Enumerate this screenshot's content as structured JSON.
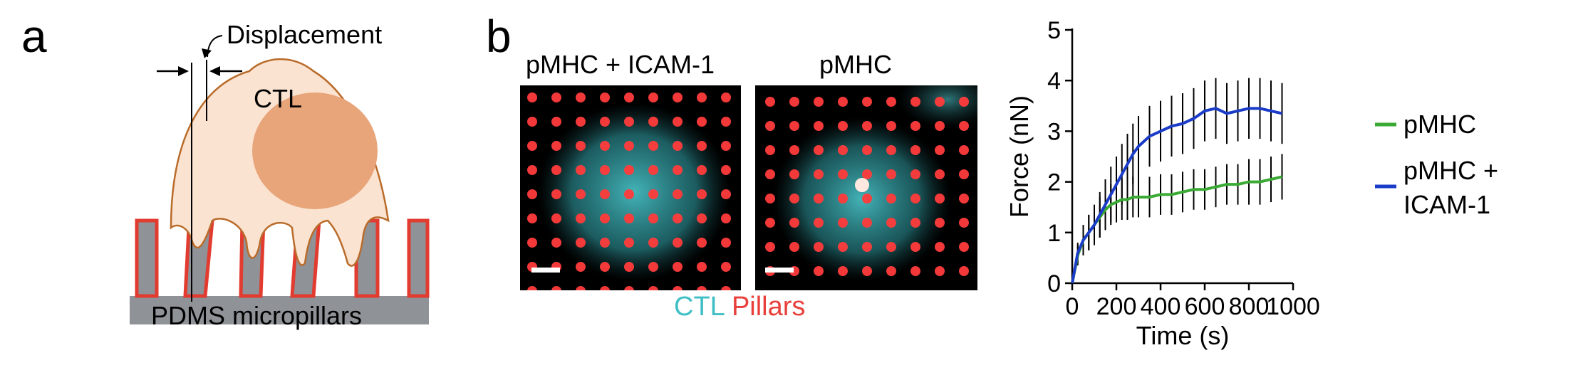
{
  "panel_a": {
    "letter": "a",
    "displacement_label": "Displacement",
    "cell_label": "CTL",
    "substrate_label": "PDMS micropillars"
  },
  "panel_b": {
    "letter": "b",
    "image_titles": [
      "pMHC + ICAM-1",
      "pMHC"
    ],
    "channel_labels": {
      "ctl": "CTL",
      "pillars": "Pillars"
    },
    "channel_colors": {
      "ctl": "#3fbfc4",
      "pillars": "#e8403a"
    }
  },
  "chart_data": {
    "type": "line",
    "xlabel": "Time (s)",
    "ylabel": "Force (nN)",
    "xlim": [
      0,
      1000
    ],
    "ylim": [
      0,
      5
    ],
    "xticks": [
      0,
      200,
      400,
      600,
      800,
      1000
    ],
    "yticks": [
      0,
      1,
      2,
      3,
      4,
      5
    ],
    "grid": false,
    "legend_position": "right",
    "series": [
      {
        "name": "pMHC",
        "color": "#3aaa35",
        "x": [
          0,
          25,
          50,
          75,
          100,
          125,
          150,
          175,
          200,
          225,
          250,
          275,
          300,
          350,
          400,
          450,
          500,
          550,
          600,
          650,
          700,
          750,
          800,
          850,
          900,
          950
        ],
        "y": [
          0.0,
          0.55,
          0.85,
          1.0,
          1.15,
          1.3,
          1.45,
          1.55,
          1.6,
          1.65,
          1.65,
          1.7,
          1.7,
          1.7,
          1.75,
          1.75,
          1.8,
          1.85,
          1.85,
          1.9,
          1.95,
          1.95,
          2.0,
          2.0,
          2.05,
          2.1
        ],
        "error": [
          0.0,
          0.2,
          0.3,
          0.35,
          0.35,
          0.4,
          0.4,
          0.4,
          0.4,
          0.4,
          0.4,
          0.4,
          0.4,
          0.4,
          0.4,
          0.4,
          0.4,
          0.4,
          0.4,
          0.4,
          0.4,
          0.4,
          0.45,
          0.45,
          0.45,
          0.45
        ]
      },
      {
        "name": "pMHC + ICAM-1",
        "color": "#1a3cc8",
        "x": [
          0,
          25,
          50,
          75,
          100,
          125,
          150,
          175,
          200,
          225,
          250,
          275,
          300,
          350,
          400,
          450,
          500,
          550,
          600,
          650,
          700,
          750,
          800,
          850,
          900,
          950
        ],
        "y": [
          0.0,
          0.6,
          0.85,
          1.0,
          1.15,
          1.35,
          1.55,
          1.75,
          1.95,
          2.15,
          2.35,
          2.55,
          2.7,
          2.9,
          3.0,
          3.1,
          3.15,
          3.25,
          3.4,
          3.45,
          3.35,
          3.4,
          3.45,
          3.45,
          3.4,
          3.35
        ],
        "error": [
          0.0,
          0.2,
          0.3,
          0.35,
          0.4,
          0.45,
          0.5,
          0.55,
          0.55,
          0.6,
          0.6,
          0.6,
          0.6,
          0.6,
          0.6,
          0.6,
          0.6,
          0.6,
          0.6,
          0.6,
          0.6,
          0.6,
          0.6,
          0.6,
          0.6,
          0.6
        ]
      }
    ],
    "legend_labels": [
      "pMHC",
      "pMHC +",
      "ICAM-1"
    ]
  }
}
